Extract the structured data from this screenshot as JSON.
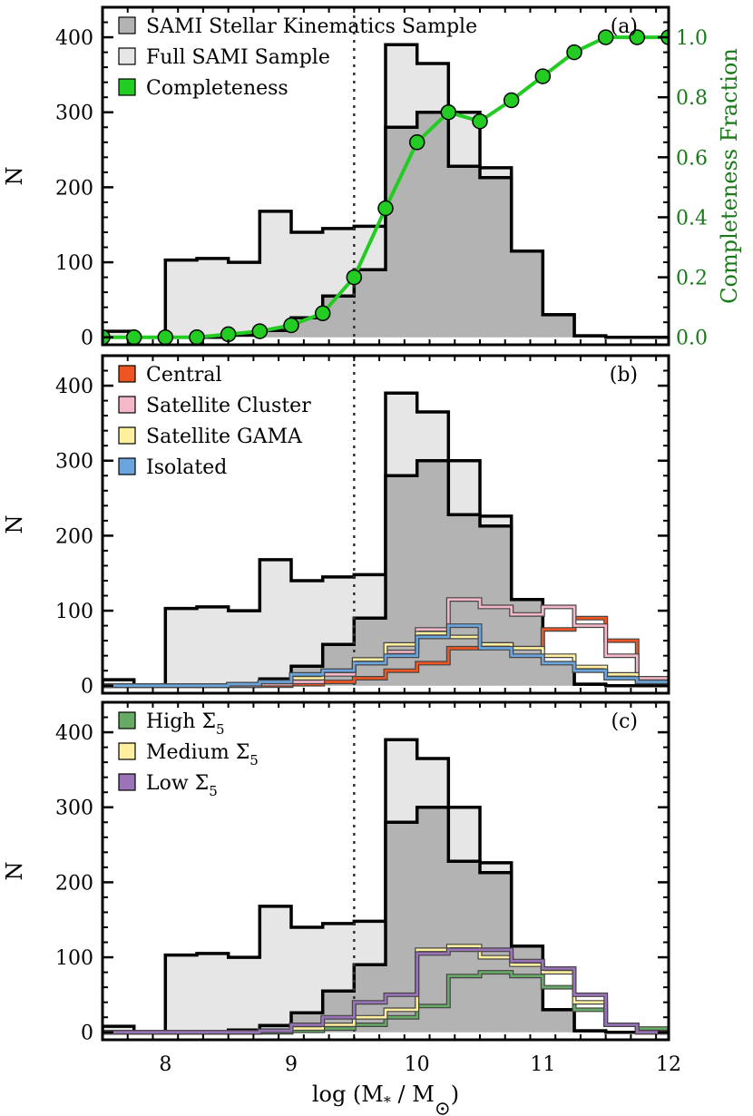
{
  "chart_data": [
    {
      "type": "histogram",
      "panel_label": "(a)",
      "x_range": [
        7.5,
        12.0
      ],
      "bin_edges": [
        7.5,
        7.75,
        8.0,
        8.25,
        8.5,
        8.75,
        9.0,
        9.25,
        9.5,
        9.75,
        10.0,
        10.25,
        10.5,
        10.75,
        11.0,
        11.25,
        11.5,
        11.75,
        12.0
      ],
      "ylabel": "N",
      "ylim": [
        -10,
        440
      ],
      "yticks": [
        "0",
        "100",
        "200",
        "300",
        "400"
      ],
      "vline_x": 9.5,
      "legend_position": "top-left",
      "series": [
        {
          "name": "Full SAMI Sample",
          "color": "#e6e6e6",
          "edge": "#000000",
          "values": [
            8,
            0,
            103,
            105,
            100,
            168,
            140,
            145,
            148,
            390,
            365,
            300,
            226,
            115,
            30,
            2,
            0,
            0
          ]
        },
        {
          "name": "SAMI Stellar Kinematics Sample",
          "color": "#b3b3b3",
          "edge": "#000000",
          "values": [
            0,
            0,
            0,
            0,
            3,
            9,
            26,
            55,
            90,
            280,
            300,
            228,
            213,
            115,
            30,
            2,
            0,
            0
          ]
        }
      ],
      "completeness": {
        "name": "Completeness",
        "color": "#22cc22",
        "right_axis_title": "Completeness Fraction",
        "right_ylim": [
          -0.025,
          1.1
        ],
        "right_yticks": [
          "0.0",
          "0.2",
          "0.4",
          "0.6",
          "0.8",
          "1.0"
        ],
        "x": [
          7.5,
          7.75,
          8.0,
          8.25,
          8.5,
          8.75,
          9.0,
          9.25,
          9.5,
          9.75,
          10.0,
          10.25,
          10.5,
          10.75,
          11.0,
          11.25,
          11.5,
          11.75,
          12.0
        ],
        "y": [
          0.0,
          0.0,
          0.0,
          0.0,
          0.01,
          0.02,
          0.04,
          0.08,
          0.2,
          0.43,
          0.65,
          0.75,
          0.72,
          0.79,
          0.87,
          0.95,
          1.0,
          1.0,
          1.0
        ]
      }
    },
    {
      "type": "histogram",
      "panel_label": "(b)",
      "ylabel": "N",
      "legend_position": "top-left",
      "series": [
        {
          "name": "Central",
          "color": "#ee5522",
          "values": [
            0,
            0,
            0,
            0,
            0,
            0,
            2,
            5,
            10,
            20,
            30,
            50,
            55,
            50,
            75,
            90,
            60,
            5
          ]
        },
        {
          "name": "Satellite Cluster",
          "color": "#f5b8c8",
          "values": [
            0,
            0,
            0,
            0,
            0,
            2,
            5,
            15,
            30,
            45,
            75,
            115,
            105,
            95,
            105,
            80,
            40,
            10
          ]
        },
        {
          "name": "Satellite GAMA",
          "color": "#fff0a0",
          "values": [
            0,
            0,
            0,
            0,
            2,
            5,
            10,
            20,
            35,
            55,
            70,
            65,
            55,
            50,
            40,
            25,
            15,
            5
          ]
        },
        {
          "name": "Isolated",
          "color": "#6aa6dd",
          "values": [
            0,
            0,
            0,
            0,
            2,
            5,
            15,
            20,
            30,
            40,
            65,
            80,
            50,
            40,
            30,
            20,
            10,
            5
          ]
        }
      ]
    },
    {
      "type": "histogram",
      "panel_label": "(c)",
      "xlabel": "log (M",
      "xlabel_sub": "*",
      "xlabel_mid": " / M",
      "xlabel_end": ")",
      "xticks": [
        "8",
        "9",
        "10",
        "11",
        "12"
      ],
      "ylabel": "N",
      "legend_position": "top-left",
      "series": [
        {
          "name": "High Σ",
          "subscript": "5",
          "color": "#66aa66",
          "values": [
            0,
            0,
            0,
            0,
            0,
            0,
            2,
            5,
            10,
            20,
            35,
            75,
            80,
            75,
            60,
            30,
            10,
            5
          ]
        },
        {
          "name": "Medium Σ",
          "subscript": "5",
          "color": "#fff0a0",
          "values": [
            0,
            0,
            0,
            0,
            0,
            2,
            5,
            10,
            20,
            30,
            110,
            115,
            100,
            90,
            80,
            40,
            10,
            0
          ]
        },
        {
          "name": "Low Σ",
          "subscript": "5",
          "color": "#9a73b8",
          "values": [
            0,
            0,
            0,
            0,
            0,
            2,
            10,
            20,
            40,
            50,
            105,
            110,
            110,
            95,
            85,
            50,
            10,
            0
          ]
        }
      ]
    }
  ]
}
